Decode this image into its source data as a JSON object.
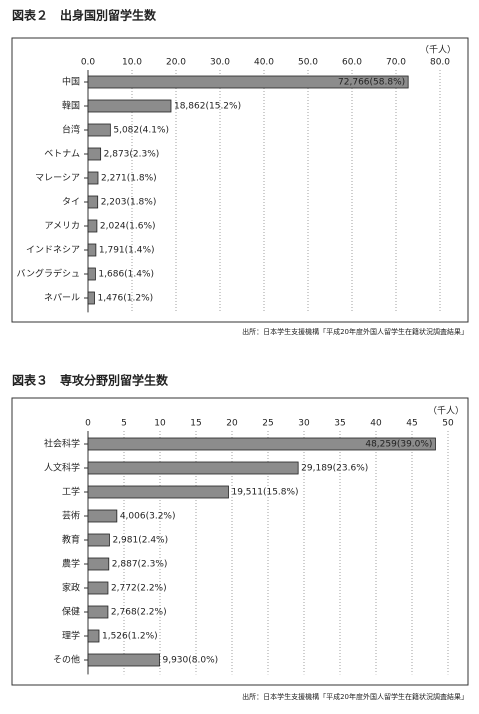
{
  "chart_data": [
    {
      "type": "bar",
      "orientation": "horizontal",
      "title": "図表２　出身国別留学生数",
      "unit": "（千人）",
      "categories": [
        "中国",
        "韓国",
        "台湾",
        "ベトナム",
        "マレーシア",
        "タイ",
        "アメリカ",
        "インドネシア",
        "バングラデシュ",
        "ネパール"
      ],
      "values": [
        72.766,
        18.862,
        5.082,
        2.873,
        2.271,
        2.203,
        2.024,
        1.791,
        1.686,
        1.476
      ],
      "value_labels": [
        "72,766(58.8%)",
        "18,862(15.2%)",
        "5,082(4.1%)",
        "2,873(2.3%)",
        "2,271(1.8%)",
        "2,203(1.8%)",
        "2,024(1.6%)",
        "1,791(1.4%)",
        "1,686(1.4%)",
        "1,476(1.2%)"
      ],
      "color": "#8c8c8c",
      "xlim": [
        0,
        80
      ],
      "xticks": [
        {
          "value": 0,
          "label": "0.0"
        },
        {
          "value": 10,
          "label": "10.0"
        },
        {
          "value": 20,
          "label": "20.0"
        },
        {
          "value": 30,
          "label": "30.0"
        },
        {
          "value": 40,
          "label": "40.0"
        },
        {
          "value": 50,
          "label": "50.0"
        },
        {
          "value": 60,
          "label": "60.0"
        },
        {
          "value": 70,
          "label": "70.0"
        },
        {
          "value": 80,
          "label": "80.0"
        }
      ],
      "grid": true,
      "source": "出所：日本学生支援機構「平成20年度外国人留学生在籍状況調査結果」"
    },
    {
      "type": "bar",
      "orientation": "horizontal",
      "title": "図表３　専攻分野別留学生数",
      "unit": "（千人）",
      "categories": [
        "社会科学",
        "人文科学",
        "工学",
        "芸術",
        "教育",
        "農学",
        "家政",
        "保健",
        "理学",
        "その他"
      ],
      "values": [
        48.259,
        29.189,
        19.511,
        4.006,
        2.981,
        2.887,
        2.772,
        2.768,
        1.526,
        9.93
      ],
      "value_labels": [
        "48,259(39.0%)",
        "29,189(23.6%)",
        "19,511(15.8%)",
        "4,006(3.2%)",
        "2,981(2.4%)",
        "2,887(2.3%)",
        "2,772(2.2%)",
        "2,768(2.2%)",
        "1,526(1.2%)",
        "9,930(8.0%)"
      ],
      "color": "#8c8c8c",
      "xlim": [
        0,
        50
      ],
      "xticks": [
        0,
        5,
        10,
        15,
        20,
        25,
        30,
        35,
        40,
        45,
        50
      ],
      "grid": true,
      "source": "出所：日本学生支援機構「平成20年度外国人留学生在籍状況調査結果」"
    }
  ]
}
